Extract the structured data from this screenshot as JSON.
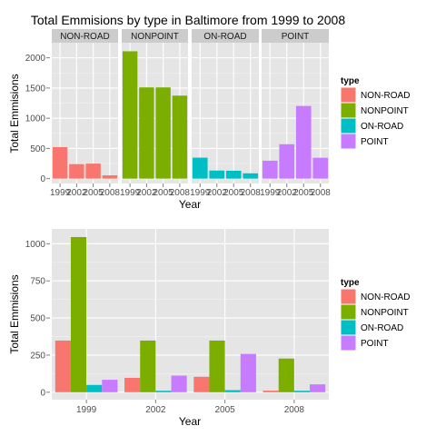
{
  "colors": {
    "panel_bg": "#e5e5e5",
    "grid_major": "#ffffff",
    "grid_minor": "#f2f2f2",
    "strip_bg": "#cccccc",
    "tick_text": "#4d4d4d",
    "text": "#000000",
    "series": {
      "NON-ROAD": "#f8766d",
      "NONPOINT": "#7cae00",
      "ON-ROAD": "#00bfc4",
      "POINT": "#c77cff"
    }
  },
  "chart_data": [
    {
      "type": "bar",
      "title": "Total Emmisions by type in Baltimore from 1999 to 2008",
      "xlabel": "Year",
      "ylabel": "Total Emmisions",
      "facets": [
        "NON-ROAD",
        "NONPOINT",
        "ON-ROAD",
        "POINT"
      ],
      "categories": [
        "1999",
        "2002",
        "2005",
        "2008"
      ],
      "series": [
        {
          "name": "NON-ROAD",
          "values": [
            522,
            241,
            249,
            55
          ]
        },
        {
          "name": "NONPOINT",
          "values": [
            2108,
            1510,
            1510,
            1374
          ]
        },
        {
          "name": "ON-ROAD",
          "values": [
            347,
            134,
            131,
            88
          ]
        },
        {
          "name": "POINT",
          "values": [
            297,
            570,
            1203,
            345
          ]
        }
      ],
      "ylim": [
        0,
        2100
      ],
      "yticks": [
        0,
        500,
        1000,
        1500,
        2000
      ],
      "legend": {
        "title": "type",
        "position": "right"
      },
      "grid": true
    },
    {
      "type": "bar",
      "title": "",
      "xlabel": "Year",
      "ylabel": "Total Emmisions",
      "categories": [
        "1999",
        "2002",
        "2005",
        "2008"
      ],
      "series": [
        {
          "name": "NON-ROAD",
          "values": [
            348,
            97,
            104,
            11
          ]
        },
        {
          "name": "NONPOINT",
          "values": [
            1045,
            348,
            348,
            227
          ]
        },
        {
          "name": "ON-ROAD",
          "values": [
            49,
            10,
            14,
            10
          ]
        },
        {
          "name": "POINT",
          "values": [
            84,
            112,
            258,
            53
          ]
        }
      ],
      "ylim": [
        0,
        1090
      ],
      "yticks": [
        0,
        250,
        500,
        750,
        1000
      ],
      "legend": {
        "title": "type",
        "position": "right"
      },
      "grid": true
    }
  ]
}
